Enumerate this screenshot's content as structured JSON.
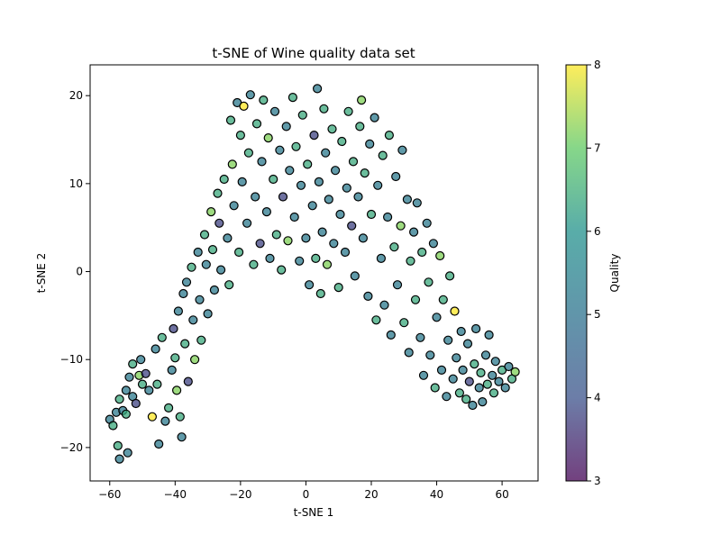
{
  "chart_data": {
    "type": "scatter",
    "title": "t-SNE of Wine quality data set",
    "xlabel": "t-SNE 1",
    "ylabel": "t-SNE 2",
    "xlim": [
      -66,
      71
    ],
    "ylim": [
      -23.8,
      23.5
    ],
    "xticks": [
      -60,
      -40,
      -20,
      0,
      20,
      40,
      60
    ],
    "yticks": [
      -20,
      -10,
      0,
      10,
      20
    ],
    "grid": false,
    "marker_edge_color": "#000000",
    "colormap": "viridis",
    "colorbar": {
      "label": "Quality",
      "min": 3,
      "max": 8,
      "ticks": [
        3,
        4,
        5,
        6,
        7,
        8
      ]
    },
    "points": [
      [
        -60,
        -16.8,
        5
      ],
      [
        -59,
        -17.5,
        6
      ],
      [
        -58,
        -16,
        5
      ],
      [
        -57.5,
        -19.8,
        6
      ],
      [
        -57,
        -21.3,
        5
      ],
      [
        -57,
        -14.5,
        6
      ],
      [
        -56,
        -15.8,
        5
      ],
      [
        -55,
        -13.5,
        5
      ],
      [
        -55,
        -16.2,
        6
      ],
      [
        -54.5,
        -20.6,
        5
      ],
      [
        -54,
        -12,
        5
      ],
      [
        -53,
        -10.5,
        6
      ],
      [
        -53,
        -14.2,
        5
      ],
      [
        -52,
        -15,
        4
      ],
      [
        -51,
        -11.8,
        7
      ],
      [
        -50.5,
        -10,
        5
      ],
      [
        -50,
        -12.8,
        6
      ],
      [
        -49,
        -11.6,
        4
      ],
      [
        -48,
        -13.5,
        5
      ],
      [
        -47,
        -16.5,
        8
      ],
      [
        -46,
        -8.8,
        5
      ],
      [
        -45.5,
        -12.8,
        6
      ],
      [
        -45,
        -19.6,
        5
      ],
      [
        -44,
        -7.5,
        6
      ],
      [
        -43,
        -17,
        5
      ],
      [
        -42,
        -15.5,
        6
      ],
      [
        -41,
        -11.2,
        5
      ],
      [
        -40.5,
        -6.5,
        4
      ],
      [
        -40,
        -9.8,
        6
      ],
      [
        -39.5,
        -13.5,
        7
      ],
      [
        -39,
        -4.5,
        5
      ],
      [
        -38.5,
        -16.5,
        6
      ],
      [
        -38,
        -18.8,
        5
      ],
      [
        -37.5,
        -2.5,
        5
      ],
      [
        -37,
        -8.2,
        6
      ],
      [
        -36.5,
        -1.2,
        5
      ],
      [
        -36,
        -12.5,
        4
      ],
      [
        -35,
        0.5,
        6
      ],
      [
        -34.5,
        -5.5,
        5
      ],
      [
        -34,
        -10,
        7
      ],
      [
        -33,
        2.2,
        5
      ],
      [
        -32.5,
        -3.2,
        5
      ],
      [
        -32,
        -7.8,
        6
      ],
      [
        -31,
        4.2,
        6
      ],
      [
        -30.5,
        0.8,
        5
      ],
      [
        -30,
        -4.8,
        5
      ],
      [
        -29,
        6.8,
        7
      ],
      [
        -28.5,
        2.5,
        6
      ],
      [
        -28,
        -2.1,
        5
      ],
      [
        -27,
        8.9,
        6
      ],
      [
        -26.5,
        5.5,
        4
      ],
      [
        -26,
        0.2,
        5
      ],
      [
        -25,
        10.5,
        6
      ],
      [
        -24,
        3.8,
        5
      ],
      [
        -23.5,
        -1.5,
        6
      ],
      [
        -23,
        17.2,
        6
      ],
      [
        -22.5,
        12.2,
        7
      ],
      [
        -22,
        7.5,
        5
      ],
      [
        -21,
        19.2,
        5
      ],
      [
        -20.5,
        2.2,
        6
      ],
      [
        -20,
        15.5,
        6
      ],
      [
        -19.5,
        10.2,
        5
      ],
      [
        -19,
        18.8,
        8
      ],
      [
        -18,
        5.5,
        5
      ],
      [
        -17.5,
        13.5,
        6
      ],
      [
        -17,
        20.1,
        5
      ],
      [
        -16,
        0.8,
        6
      ],
      [
        -15.5,
        8.5,
        5
      ],
      [
        -15,
        16.8,
        6
      ],
      [
        -14,
        3.2,
        4
      ],
      [
        -13.5,
        12.5,
        5
      ],
      [
        -13,
        19.5,
        6
      ],
      [
        -12,
        6.8,
        5
      ],
      [
        -11.5,
        15.2,
        7
      ],
      [
        -11,
        1.5,
        5
      ],
      [
        -10,
        10.5,
        6
      ],
      [
        -9.5,
        18.2,
        5
      ],
      [
        -9,
        4.2,
        6
      ],
      [
        -8,
        13.8,
        5
      ],
      [
        -7.5,
        0.2,
        6
      ],
      [
        -7,
        8.5,
        4
      ],
      [
        -6,
        16.5,
        5
      ],
      [
        -5.5,
        3.5,
        7
      ],
      [
        -5,
        11.5,
        5
      ],
      [
        -4,
        19.8,
        6
      ],
      [
        -3.5,
        6.2,
        5
      ],
      [
        -3,
        14.2,
        6
      ],
      [
        -2,
        1.2,
        5
      ],
      [
        -1.5,
        9.8,
        5
      ],
      [
        -1,
        17.8,
        6
      ],
      [
        0,
        3.8,
        5
      ],
      [
        0.5,
        12.2,
        6
      ],
      [
        1,
        -1.5,
        5
      ],
      [
        2,
        7.5,
        5
      ],
      [
        2.5,
        15.5,
        4
      ],
      [
        3,
        1.5,
        6
      ],
      [
        3.5,
        20.8,
        5
      ],
      [
        4,
        10.2,
        5
      ],
      [
        4.5,
        -2.5,
        6
      ],
      [
        5,
        4.5,
        5
      ],
      [
        5.5,
        18.5,
        6
      ],
      [
        6,
        13.5,
        5
      ],
      [
        6.5,
        0.8,
        7
      ],
      [
        7,
        8.2,
        5
      ],
      [
        8,
        16.2,
        6
      ],
      [
        8.5,
        3.2,
        5
      ],
      [
        9,
        11.5,
        5
      ],
      [
        10,
        -1.8,
        6
      ],
      [
        10.5,
        6.5,
        5
      ],
      [
        11,
        14.8,
        6
      ],
      [
        12,
        2.2,
        5
      ],
      [
        12.5,
        9.5,
        5
      ],
      [
        13,
        18.2,
        6
      ],
      [
        14,
        5.2,
        4
      ],
      [
        14.5,
        12.5,
        6
      ],
      [
        15,
        -0.5,
        5
      ],
      [
        16,
        8.5,
        5
      ],
      [
        16.5,
        16.5,
        6
      ],
      [
        17,
        19.5,
        7
      ],
      [
        17.5,
        3.8,
        5
      ],
      [
        18,
        11.2,
        6
      ],
      [
        19,
        -2.8,
        5
      ],
      [
        19.5,
        14.5,
        5
      ],
      [
        20,
        6.5,
        6
      ],
      [
        21,
        17.5,
        5
      ],
      [
        21.5,
        -5.5,
        6
      ],
      [
        22,
        9.8,
        5
      ],
      [
        23,
        1.5,
        5
      ],
      [
        23.5,
        13.2,
        6
      ],
      [
        24,
        -3.8,
        5
      ],
      [
        25,
        6.2,
        5
      ],
      [
        25.5,
        15.5,
        6
      ],
      [
        26,
        -7.2,
        5
      ],
      [
        27,
        2.8,
        6
      ],
      [
        27.5,
        10.8,
        5
      ],
      [
        28,
        -1.5,
        5
      ],
      [
        29,
        5.2,
        7
      ],
      [
        29.5,
        13.8,
        5
      ],
      [
        30,
        -5.8,
        6
      ],
      [
        31,
        8.2,
        5
      ],
      [
        31.5,
        -9.2,
        5
      ],
      [
        32,
        1.2,
        6
      ],
      [
        33,
        4.5,
        5
      ],
      [
        33.5,
        -3.2,
        6
      ],
      [
        34,
        7.8,
        5
      ],
      [
        35,
        -7.5,
        5
      ],
      [
        35.5,
        2.2,
        6
      ],
      [
        36,
        -11.8,
        5
      ],
      [
        37,
        5.5,
        5
      ],
      [
        37.5,
        -1.2,
        6
      ],
      [
        38,
        -9.5,
        5
      ],
      [
        39,
        3.2,
        5
      ],
      [
        39.5,
        -13.2,
        6
      ],
      [
        40,
        -5.2,
        5
      ],
      [
        41,
        1.8,
        7
      ],
      [
        41.5,
        -11.2,
        5
      ],
      [
        42,
        -3.2,
        6
      ],
      [
        43,
        -14.2,
        5
      ],
      [
        43.5,
        -7.8,
        5
      ],
      [
        44,
        -0.5,
        6
      ],
      [
        45,
        -12.2,
        5
      ],
      [
        45.5,
        -4.5,
        8
      ],
      [
        46,
        -9.8,
        5
      ],
      [
        47,
        -13.8,
        6
      ],
      [
        47.5,
        -6.8,
        5
      ],
      [
        48,
        -11.2,
        5
      ],
      [
        49,
        -14.5,
        6
      ],
      [
        49.5,
        -8.2,
        5
      ],
      [
        50,
        -12.5,
        4
      ],
      [
        51,
        -15.2,
        5
      ],
      [
        51.5,
        -10.5,
        6
      ],
      [
        52,
        -6.5,
        5
      ],
      [
        53,
        -13.2,
        5
      ],
      [
        53.5,
        -11.5,
        6
      ],
      [
        54,
        -14.8,
        5
      ],
      [
        55,
        -9.5,
        5
      ],
      [
        55.5,
        -12.8,
        6
      ],
      [
        56,
        -7.2,
        5
      ],
      [
        57,
        -11.8,
        5
      ],
      [
        57.5,
        -13.8,
        6
      ],
      [
        58,
        -10.2,
        5
      ],
      [
        59,
        -12.5,
        5
      ],
      [
        60,
        -11.2,
        6
      ],
      [
        61,
        -13.2,
        5
      ],
      [
        62,
        -10.8,
        5
      ],
      [
        63,
        -12.2,
        6
      ],
      [
        64,
        -11.4,
        7
      ]
    ]
  }
}
